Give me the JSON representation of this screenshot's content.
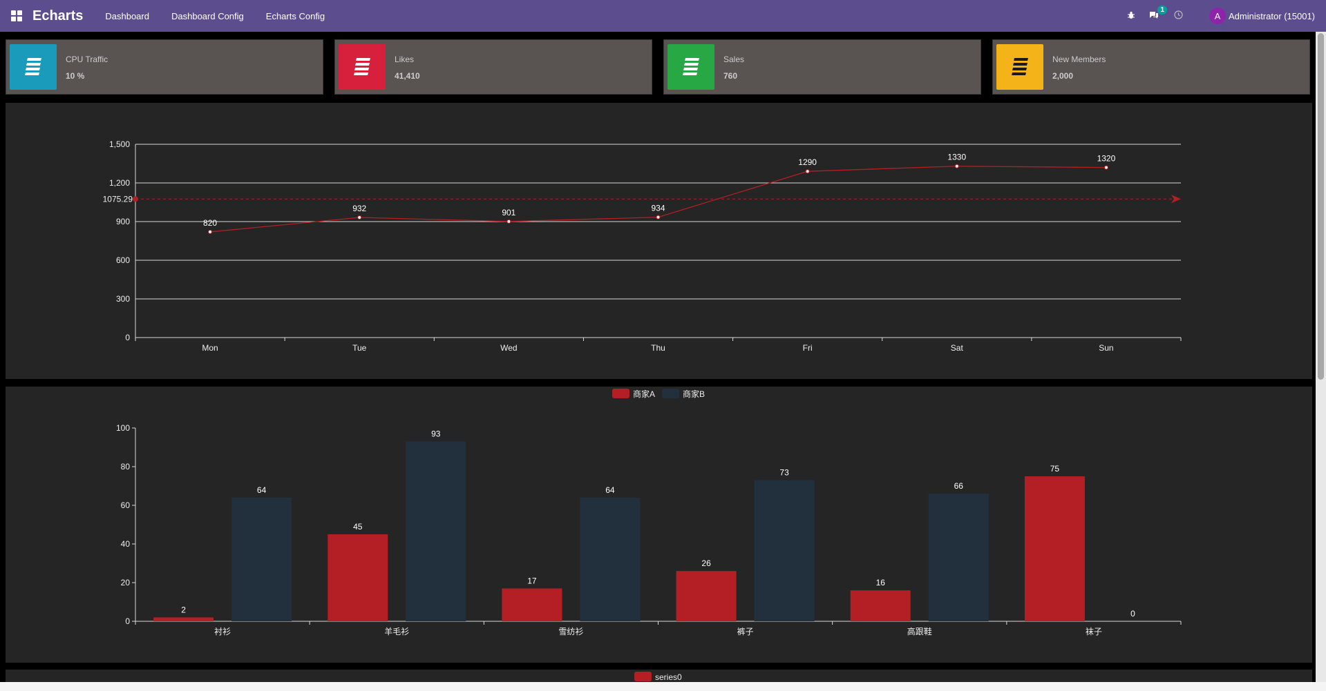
{
  "navbar": {
    "brand": "Echarts",
    "menu": [
      "Dashboard",
      "Dashboard Config",
      "Echarts Config"
    ],
    "message_count": "1",
    "avatar_letter": "A",
    "user": "Administrator (15001)"
  },
  "cards": [
    {
      "label": "CPU Traffic",
      "value": "10 %",
      "color": "#1a9bbc"
    },
    {
      "label": "Likes",
      "value": "41,410",
      "color": "#d7203c"
    },
    {
      "label": "Sales",
      "value": "760",
      "color": "#28a745"
    },
    {
      "label": "New Members",
      "value": "2,000",
      "color": "#f5b31a"
    }
  ],
  "chart_data": [
    {
      "type": "line",
      "categories": [
        "Mon",
        "Tue",
        "Wed",
        "Thu",
        "Fri",
        "Sat",
        "Sun"
      ],
      "values": [
        820,
        932,
        901,
        934,
        1290,
        1330,
        1320
      ],
      "ylim": [
        0,
        1500
      ],
      "yticks": [
        "0",
        "300",
        "600",
        "900",
        "1,200",
        "1,500"
      ],
      "mark_line": {
        "value": 1075.29,
        "label": "1075.29",
        "type": "average"
      },
      "color": "#b41f25",
      "grid": true
    },
    {
      "type": "bar",
      "categories": [
        "衬衫",
        "羊毛衫",
        "雪纺衫",
        "裤子",
        "高跟鞋",
        "袜子"
      ],
      "series": [
        {
          "name": "商家A",
          "values": [
            2,
            45,
            17,
            26,
            16,
            75
          ],
          "color": "#b41f25"
        },
        {
          "name": "商家B",
          "values": [
            64,
            93,
            64,
            73,
            66,
            0
          ],
          "color": "#21303c"
        }
      ],
      "ylim": [
        0,
        100
      ],
      "yticks": [
        "0",
        "20",
        "40",
        "60",
        "80",
        "100"
      ],
      "legend": "top-center",
      "grid": false
    },
    {
      "type": "bar",
      "series": [
        {
          "name": "series0",
          "color": "#b41f25"
        }
      ],
      "legend": "top-center"
    }
  ]
}
